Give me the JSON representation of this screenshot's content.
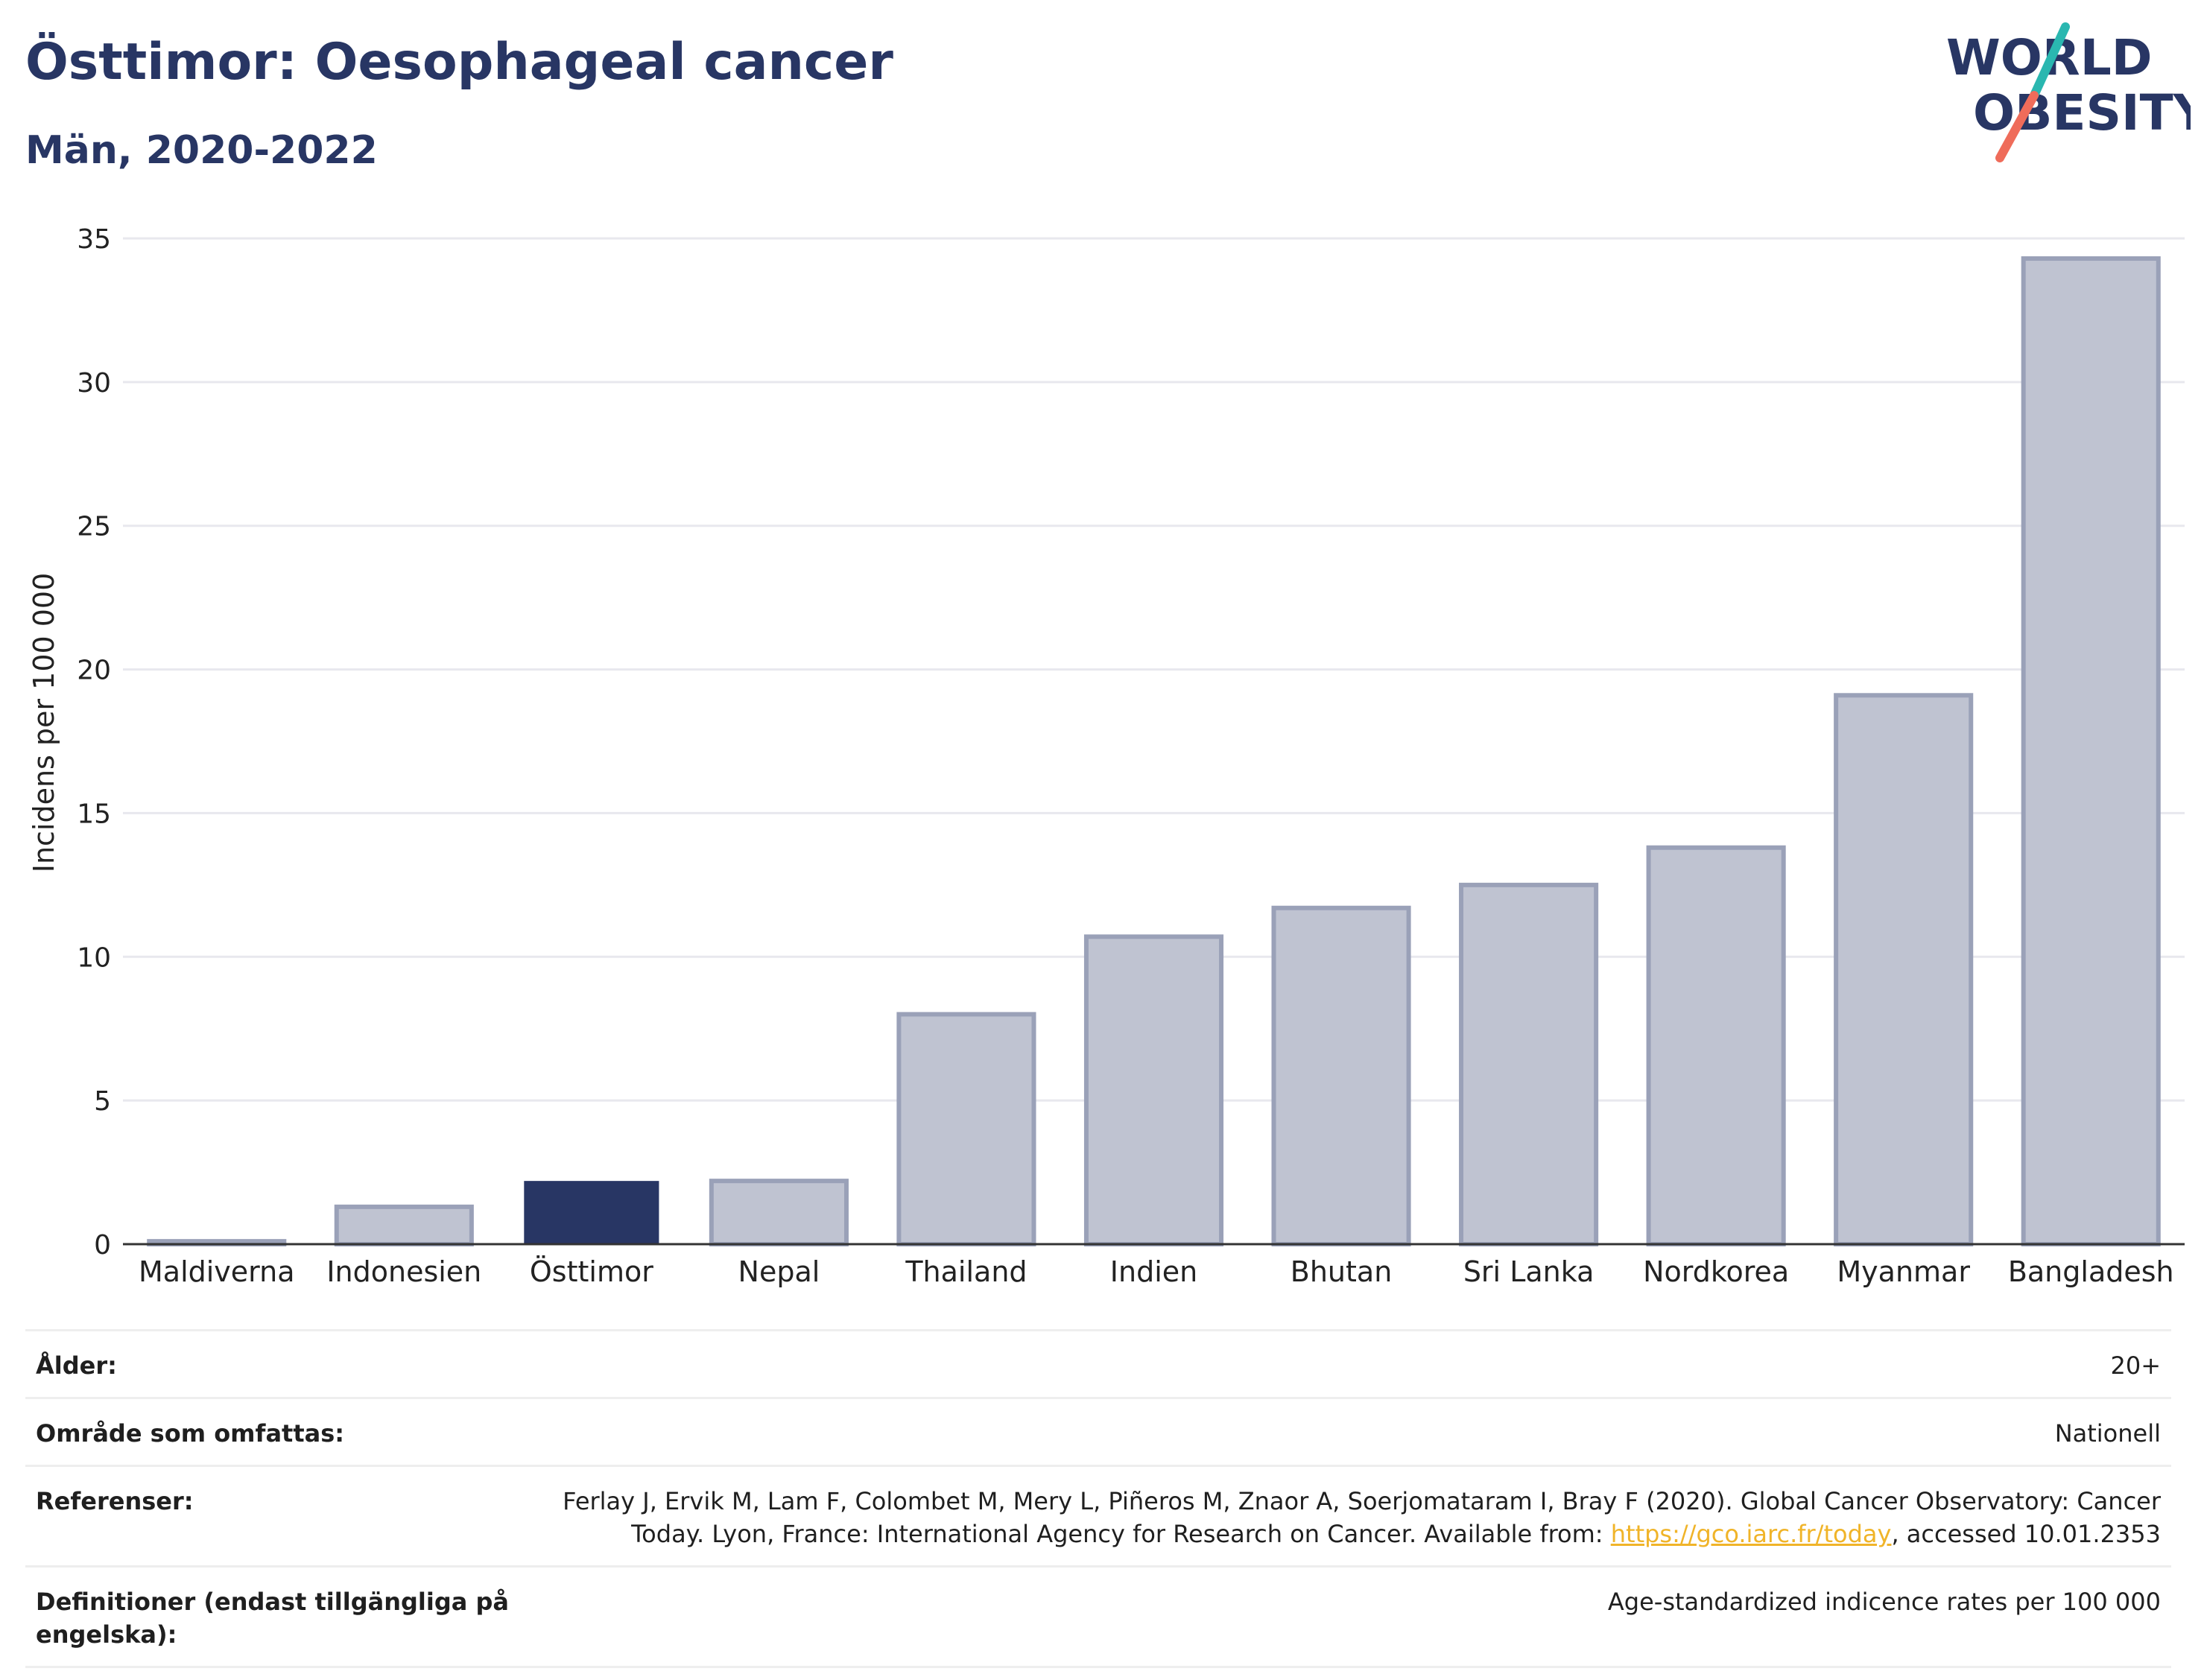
{
  "header": {
    "title": "Östtimor: Oesophageal cancer",
    "subtitle": "Män, 2020-2022"
  },
  "logo": {
    "line1": "WORLD",
    "line2": "OBESITY",
    "colors": {
      "text": "#283664",
      "slash_top": "#2ab7b0",
      "slash_bottom": "#ef6c5a"
    }
  },
  "colors": {
    "highlight_bar": "#283664",
    "other_bar_fill": "#bfc3d1",
    "other_bar_stroke": "#9aa1b8",
    "grid": "#e8e8ee",
    "axis": "#333333"
  },
  "chart_data": {
    "type": "bar",
    "title": "Östtimor: Oesophageal cancer",
    "subtitle": "Män, 2020-2022",
    "xlabel": "",
    "ylabel": "Incidens per 100 000",
    "ylim": [
      0,
      35
    ],
    "yticks": [
      0,
      5,
      10,
      15,
      20,
      25,
      30,
      35
    ],
    "grid": true,
    "categories": [
      "Maldiverna",
      "Indonesien",
      "Östtimor",
      "Nepal",
      "Thailand",
      "Indien",
      "Bhutan",
      "Sri Lanka",
      "Nordkorea",
      "Myanmar",
      "Bangladesh"
    ],
    "values": [
      0.1,
      1.3,
      2.2,
      2.2,
      8.0,
      10.7,
      11.7,
      12.5,
      13.8,
      19.1,
      34.3
    ],
    "highlight": "Östtimor"
  },
  "meta": {
    "age_label": "Ålder:",
    "age_value": "20+",
    "area_label": "Område som omfattas:",
    "area_value": "Nationell",
    "refs_label": "Referenser:",
    "refs_text_before": "Ferlay J, Ervik M, Lam F, Colombet M, Mery L, Piñeros M, Znaor A, Soerjomataram I, Bray F (2020). Global Cancer Observatory: Cancer Today. Lyon, France: International Agency for Research on Cancer. Available from: ",
    "refs_link": "https://gco.iarc.fr/today",
    "refs_text_after": ", accessed 10.01.2353",
    "defs_label": "Definitioner (endast tillgängliga på engelska):",
    "defs_value": "Age-standardized indicence rates per 100 000"
  }
}
